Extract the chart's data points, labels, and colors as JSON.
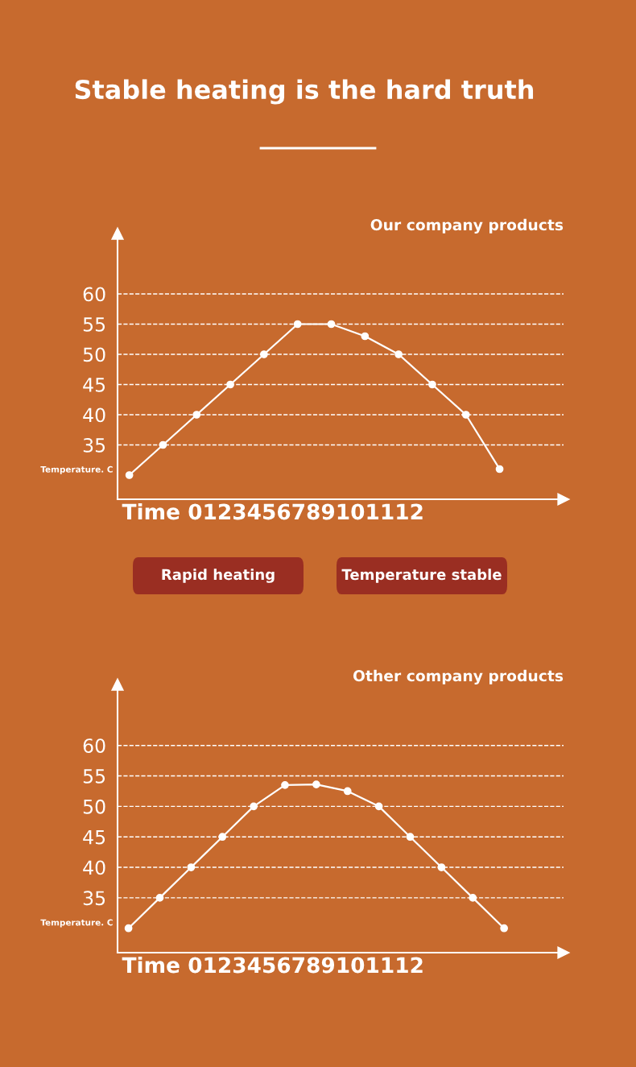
{
  "chart_data": [
    {
      "type": "line",
      "title": "Our company products",
      "ylabel": "Temperature. C",
      "xlabel": "Time 0123456789101112",
      "annotations": [
        "Stable heating is the hard truth",
        "Rapid heating",
        "Temperature stable"
      ],
      "categories": [
        null,
        null,
        null,
        null,
        null,
        null,
        null,
        null,
        null,
        null,
        null,
        null
      ],
      "series": [
        {
          "color": "#ffffff",
          "values": [
            30,
            35,
            40,
            45,
            50,
            55,
            55,
            53,
            50,
            45,
            40,
            31
          ]
        }
      ],
      "ylim": [
        26,
        70
      ],
      "yticks": [
        35,
        40,
        45,
        50,
        55,
        60
      ],
      "grid": "y",
      "marker": "circle",
      "line_style": "solid",
      "tick_labels": "y"
    },
    {
      "type": "line",
      "title": "Other company products",
      "ylabel": "Temperature. C",
      "xlabel": "Time 0123456789101112",
      "categories": [
        null,
        null,
        null,
        null,
        null,
        null,
        null,
        null,
        null,
        null,
        null,
        null,
        null
      ],
      "series": [
        {
          "color": "#ffffff",
          "values": [
            30,
            35,
            40,
            45,
            50,
            53.5,
            53.6,
            52.5,
            50,
            45,
            40,
            35,
            30
          ]
        }
      ],
      "ylim": [
        26,
        70
      ],
      "yticks": [
        35,
        40,
        45,
        50,
        55,
        60
      ],
      "grid": "y",
      "marker": "circle",
      "line_style": "solid",
      "tick_labels": "y"
    }
  ]
}
